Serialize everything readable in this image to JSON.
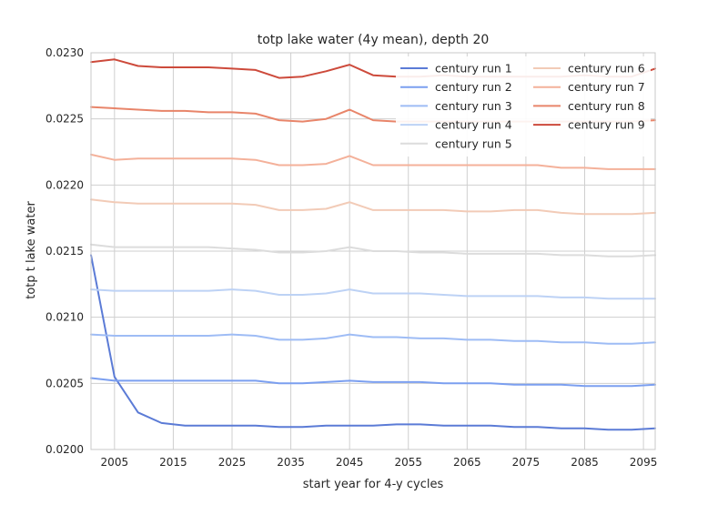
{
  "chart_data": {
    "type": "line",
    "title": "totp lake water (4y mean), depth 20",
    "xlabel": "start year for 4-y cycles",
    "ylabel": "totp t lake water",
    "xlim": [
      2001,
      2097
    ],
    "ylim": [
      0.02,
      0.023
    ],
    "xticks": [
      2005,
      2015,
      2025,
      2035,
      2045,
      2055,
      2065,
      2075,
      2085,
      2095
    ],
    "yticks": [
      0.02,
      0.0205,
      0.021,
      0.0215,
      0.022,
      0.0225,
      0.023
    ],
    "ytick_labels": [
      "0.0200",
      "0.0205",
      "0.0210",
      "0.0215",
      "0.0220",
      "0.0225",
      "0.0230"
    ],
    "grid": true,
    "legend_position": "top-right",
    "legend_columns": 2,
    "x": [
      2001,
      2005,
      2009,
      2013,
      2017,
      2021,
      2025,
      2029,
      2033,
      2037,
      2041,
      2045,
      2049,
      2053,
      2057,
      2061,
      2065,
      2069,
      2073,
      2077,
      2081,
      2085,
      2089,
      2093,
      2097
    ],
    "series": [
      {
        "name": "century run 1",
        "color": "#5b7bd6",
        "values": [
          0.02147,
          0.02055,
          0.02028,
          0.0202,
          0.02018,
          0.02018,
          0.02018,
          0.02018,
          0.02017,
          0.02017,
          0.02018,
          0.02018,
          0.02018,
          0.02019,
          0.02019,
          0.02018,
          0.02018,
          0.02018,
          0.02017,
          0.02017,
          0.02016,
          0.02016,
          0.02015,
          0.02015,
          0.02016
        ]
      },
      {
        "name": "century run 2",
        "color": "#7b9ff0",
        "values": [
          0.02054,
          0.02052,
          0.02052,
          0.02052,
          0.02052,
          0.02052,
          0.02052,
          0.02052,
          0.0205,
          0.0205,
          0.02051,
          0.02052,
          0.02051,
          0.02051,
          0.02051,
          0.0205,
          0.0205,
          0.0205,
          0.02049,
          0.02049,
          0.02049,
          0.02048,
          0.02048,
          0.02048,
          0.02049
        ]
      },
      {
        "name": "century run 3",
        "color": "#9ebcf5",
        "values": [
          0.02087,
          0.02086,
          0.02086,
          0.02086,
          0.02086,
          0.02086,
          0.02087,
          0.02086,
          0.02083,
          0.02083,
          0.02084,
          0.02087,
          0.02085,
          0.02085,
          0.02084,
          0.02084,
          0.02083,
          0.02083,
          0.02082,
          0.02082,
          0.02081,
          0.02081,
          0.0208,
          0.0208,
          0.02081
        ]
      },
      {
        "name": "century run 4",
        "color": "#bdd2f5",
        "values": [
          0.02121,
          0.0212,
          0.0212,
          0.0212,
          0.0212,
          0.0212,
          0.02121,
          0.0212,
          0.02117,
          0.02117,
          0.02118,
          0.02121,
          0.02118,
          0.02118,
          0.02118,
          0.02117,
          0.02116,
          0.02116,
          0.02116,
          0.02116,
          0.02115,
          0.02115,
          0.02114,
          0.02114,
          0.02114
        ]
      },
      {
        "name": "century run 5",
        "color": "#dcdcdc",
        "values": [
          0.02155,
          0.02153,
          0.02153,
          0.02153,
          0.02153,
          0.02153,
          0.02152,
          0.02151,
          0.02149,
          0.02149,
          0.0215,
          0.02153,
          0.0215,
          0.0215,
          0.02149,
          0.02149,
          0.02148,
          0.02148,
          0.02148,
          0.02148,
          0.02147,
          0.02147,
          0.02146,
          0.02146,
          0.02147
        ]
      },
      {
        "name": "century run 6",
        "color": "#f2cbb7",
        "values": [
          0.02189,
          0.02187,
          0.02186,
          0.02186,
          0.02186,
          0.02186,
          0.02186,
          0.02185,
          0.02181,
          0.02181,
          0.02182,
          0.02187,
          0.02181,
          0.02181,
          0.02181,
          0.02181,
          0.0218,
          0.0218,
          0.02181,
          0.02181,
          0.02179,
          0.02178,
          0.02178,
          0.02178,
          0.02179
        ]
      },
      {
        "name": "century run 7",
        "color": "#f4b19a",
        "values": [
          0.02223,
          0.02219,
          0.0222,
          0.0222,
          0.0222,
          0.0222,
          0.0222,
          0.02219,
          0.02215,
          0.02215,
          0.02216,
          0.02222,
          0.02215,
          0.02215,
          0.02215,
          0.02215,
          0.02215,
          0.02215,
          0.02215,
          0.02215,
          0.02213,
          0.02213,
          0.02212,
          0.02212,
          0.02212
        ]
      },
      {
        "name": "century run 8",
        "color": "#e8856a",
        "values": [
          0.02259,
          0.02258,
          0.02257,
          0.02256,
          0.02256,
          0.02255,
          0.02255,
          0.02254,
          0.02249,
          0.02248,
          0.0225,
          0.02257,
          0.02249,
          0.02248,
          0.02248,
          0.02248,
          0.02248,
          0.02248,
          0.02248,
          0.02248,
          0.02248,
          0.02248,
          0.02248,
          0.02248,
          0.02249
        ]
      },
      {
        "name": "century run 9",
        "color": "#cd4a3b",
        "values": [
          0.02293,
          0.02295,
          0.0229,
          0.02289,
          0.02289,
          0.02289,
          0.02288,
          0.02287,
          0.02281,
          0.02282,
          0.02286,
          0.02291,
          0.02283,
          0.02282,
          0.02282,
          0.02283,
          0.02282,
          0.02282,
          0.02282,
          0.02282,
          0.02282,
          0.02283,
          0.02282,
          0.02282,
          0.02288
        ]
      }
    ]
  }
}
